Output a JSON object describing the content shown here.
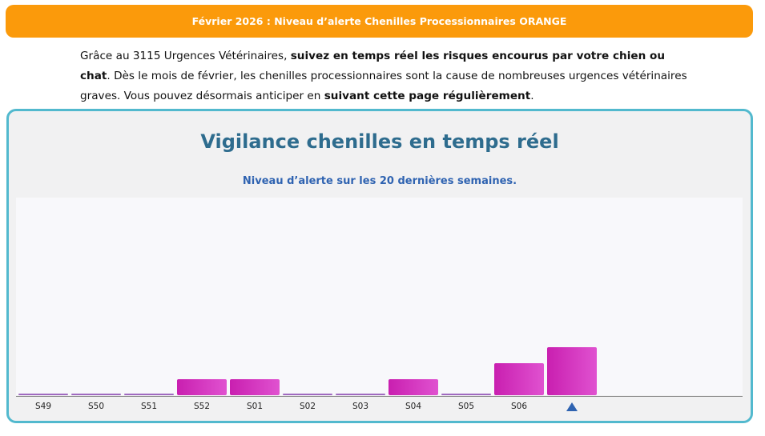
{
  "banner": {
    "text": "Février 2026 : Niveau d’alerte Chenilles Processionnaires ORANGE",
    "color": "#fb9a0b"
  },
  "intro": {
    "p1": "Grâce au 3115 Urgences Vétérinaires, ",
    "b1": "suivez en temps réel les risques encourus par votre chien ou chat",
    "p2": ". Dès le mois de février, les chenilles processionnaires sont la cause de nombreuses urgences vétérinaires graves. Vous pouvez désormais anticiper en ",
    "b2": "suivant cette page régulièrement",
    "p3": "."
  },
  "panel": {
    "title": "Vigilance chenilles en temps réel",
    "subtitle": "Niveau d’alerte sur les 20 dernières semaines.",
    "border_color": "#52b9ce"
  },
  "chart_data": {
    "type": "bar",
    "title": "Vigilance chenilles en temps réel",
    "subtitle": "Niveau d’alerte sur les 20 dernières semaines.",
    "categories": [
      "S49",
      "S50",
      "S51",
      "S52",
      "S01",
      "S02",
      "S03",
      "S04",
      "S05",
      "S06",
      ""
    ],
    "values": [
      0.1,
      0.1,
      0.1,
      1,
      1,
      0.1,
      0.1,
      1,
      0.1,
      2,
      3
    ],
    "current_index": 10,
    "ylim": [
      0,
      12
    ],
    "xlabel": "",
    "ylabel": "",
    "grid": false,
    "colors": {
      "bar": "#d23dc0",
      "marker": "#2f63b1"
    }
  }
}
